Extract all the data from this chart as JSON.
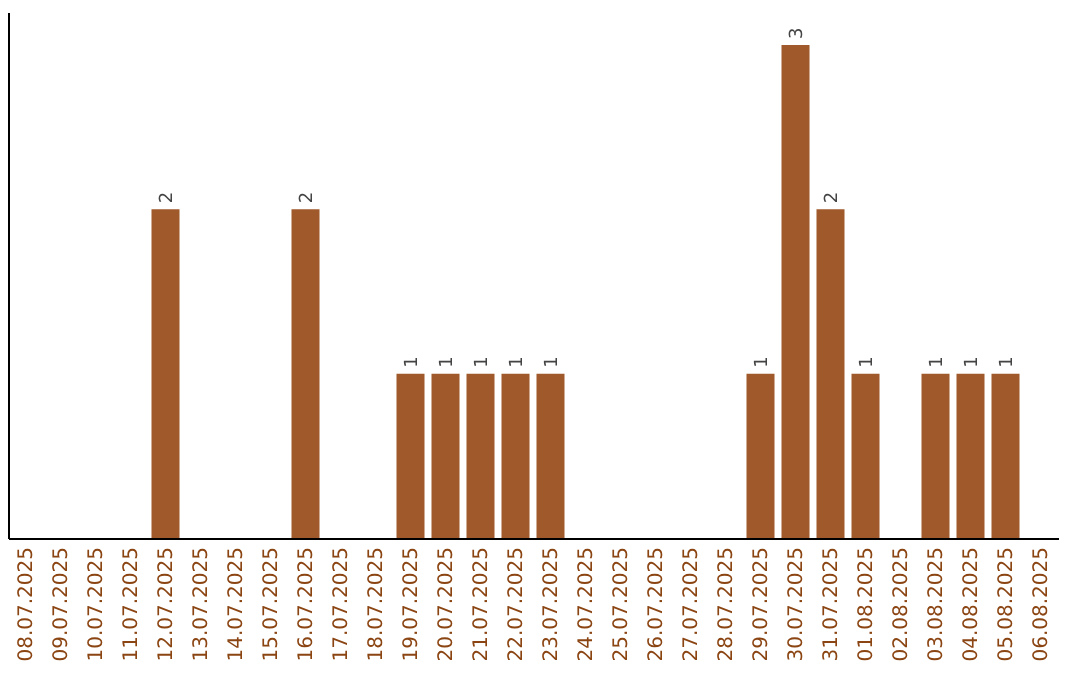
{
  "chart_data": {
    "type": "bar",
    "categories": [
      "08.07.2025",
      "09.07.2025",
      "10.07.2025",
      "11.07.2025",
      "12.07.2025",
      "13.07.2025",
      "14.07.2025",
      "15.07.2025",
      "16.07.2025",
      "17.07.2025",
      "18.07.2025",
      "19.07.2025",
      "20.07.2025",
      "21.07.2025",
      "22.07.2025",
      "23.07.2025",
      "24.07.2025",
      "25.07.2025",
      "26.07.2025",
      "27.07.2025",
      "28.07.2025",
      "29.07.2025",
      "30.07.2025",
      "31.07.2025",
      "01.08.2025",
      "02.08.2025",
      "03.08.2025",
      "04.08.2025",
      "05.08.2025",
      "06.08.2025"
    ],
    "values": [
      0,
      0,
      0,
      0,
      2,
      0,
      0,
      0,
      2,
      0,
      0,
      1,
      1,
      1,
      1,
      1,
      0,
      0,
      0,
      0,
      0,
      1,
      3,
      2,
      1,
      0,
      1,
      1,
      1,
      0
    ],
    "value_labels": [
      null,
      null,
      null,
      null,
      "2",
      null,
      null,
      null,
      "2",
      null,
      null,
      "1",
      "1",
      "1",
      "1",
      "1",
      null,
      null,
      null,
      null,
      null,
      "1",
      "3",
      "2",
      "1",
      null,
      "1",
      "1",
      "1",
      null
    ],
    "color": "#a0592b",
    "ylim": [
      0,
      3.2
    ],
    "tick_labels": "x",
    "grid": false
  }
}
